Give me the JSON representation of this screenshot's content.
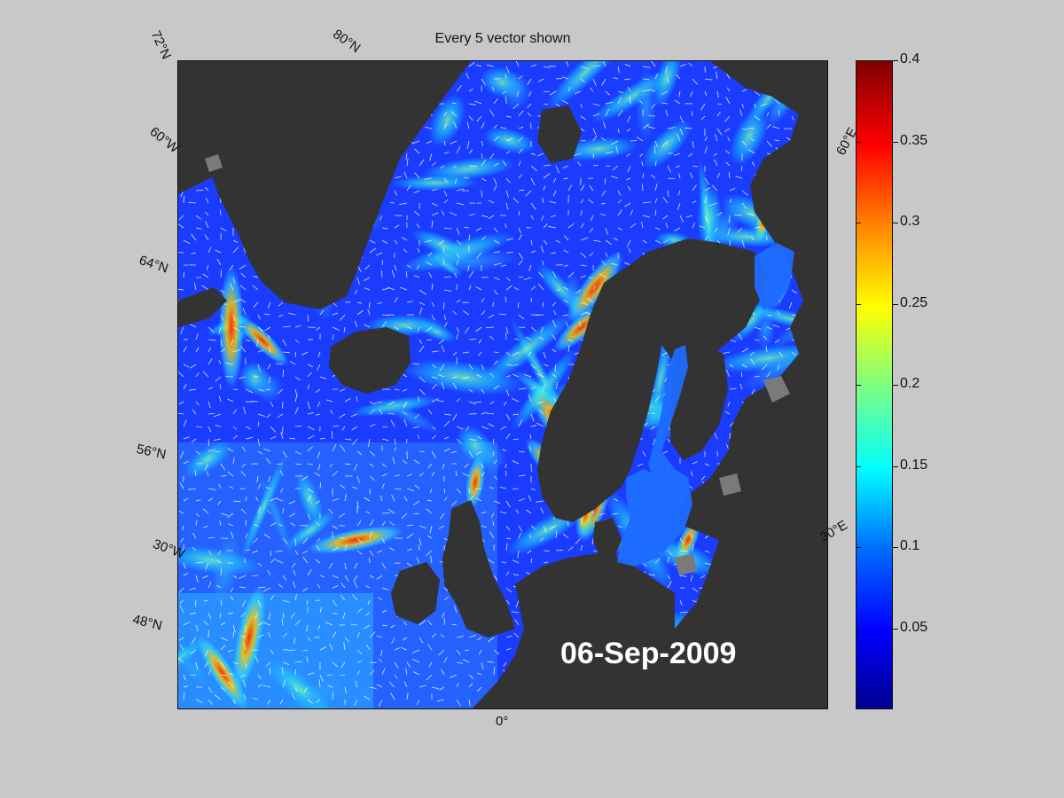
{
  "title": "Every 5 vector shown",
  "date": "06-Sep-2009",
  "grid_labels": [
    {
      "text": "72°N"
    },
    {
      "text": "80°N"
    },
    {
      "text": "60°W"
    },
    {
      "text": "64°N"
    },
    {
      "text": "56°N"
    },
    {
      "text": "30°W"
    },
    {
      "text": "48°N"
    },
    {
      "text": "0°"
    },
    {
      "text": "30°E"
    },
    {
      "text": "60°E"
    }
  ],
  "colorbar": {
    "min": 0,
    "max": 0.4,
    "colormap": "jet",
    "ticks": [
      "0.05",
      "0.1",
      "0.15",
      "0.2",
      "0.25",
      "0.3",
      "0.35",
      "0.4"
    ],
    "tick_values": [
      0.05,
      0.1,
      0.15,
      0.2,
      0.25,
      0.3,
      0.35,
      0.4
    ]
  },
  "colors": {
    "background": "#c8c8c8",
    "land": "#333333",
    "ice_land": "#7a7a7a",
    "vectors": "#ffffff"
  }
}
